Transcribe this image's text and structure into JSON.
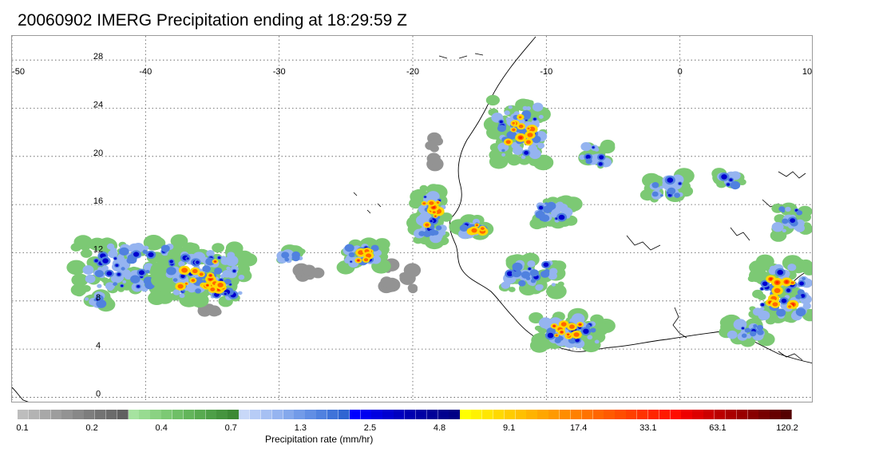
{
  "title": "20060902 IMERG Precipitation ending at 18:29:59 Z",
  "map": {
    "lon_labels": [
      "-50",
      "-40",
      "-30",
      "-20",
      "-10",
      "0",
      "10"
    ],
    "lat_labels": [
      "0",
      "4",
      "8",
      "12",
      "16",
      "20",
      "24",
      "28"
    ],
    "lon_range": [
      -50,
      10
    ],
    "lat_range": [
      -0.5,
      30
    ],
    "grid": true
  },
  "colorbar": {
    "title": "Precipitation rate (mm/hr)",
    "labels": [
      "0.1",
      "0.2",
      "0.4",
      "0.7",
      "1.3",
      "2.5",
      "4.8",
      "9.1",
      "17.4",
      "33.1",
      "63.1",
      "120.2"
    ],
    "colors": [
      "#bdbdbd",
      "#b3b3b3",
      "#a8a8a8",
      "#9d9d9d",
      "#939393",
      "#888888",
      "#7d7d7d",
      "#737373",
      "#6b6b6b",
      "#606060",
      "#a6e3a0",
      "#98db91",
      "#8ad282",
      "#7cc974",
      "#6fbf67",
      "#63b55b",
      "#58aa50",
      "#4e9f47",
      "#45943e",
      "#3c8935",
      "#c8d8f8",
      "#b7ccf6",
      "#a6c0f3",
      "#95b4f0",
      "#84a8ec",
      "#729be8",
      "#618ee4",
      "#5081df",
      "#3f73d9",
      "#2f65d2",
      "#0000ff",
      "#0000f0",
      "#0000e0",
      "#0000d0",
      "#0000c0",
      "#0000b0",
      "#0000a4",
      "#000098",
      "#00008e",
      "#000085",
      "#ffff00",
      "#fff200",
      "#ffe600",
      "#ffd900",
      "#ffcc00",
      "#ffc000",
      "#ffb300",
      "#ffa600",
      "#ff9a00",
      "#ff8d00",
      "#ff8000",
      "#ff7300",
      "#ff6600",
      "#ff5a00",
      "#ff4d00",
      "#ff4000",
      "#ff3300",
      "#ff2600",
      "#ff1a00",
      "#ff0d00",
      "#ee0000",
      "#dd0000",
      "#cc0000",
      "#bb0000",
      "#aa0000",
      "#990000",
      "#880000",
      "#770000",
      "#660000",
      "#550000"
    ]
  }
}
